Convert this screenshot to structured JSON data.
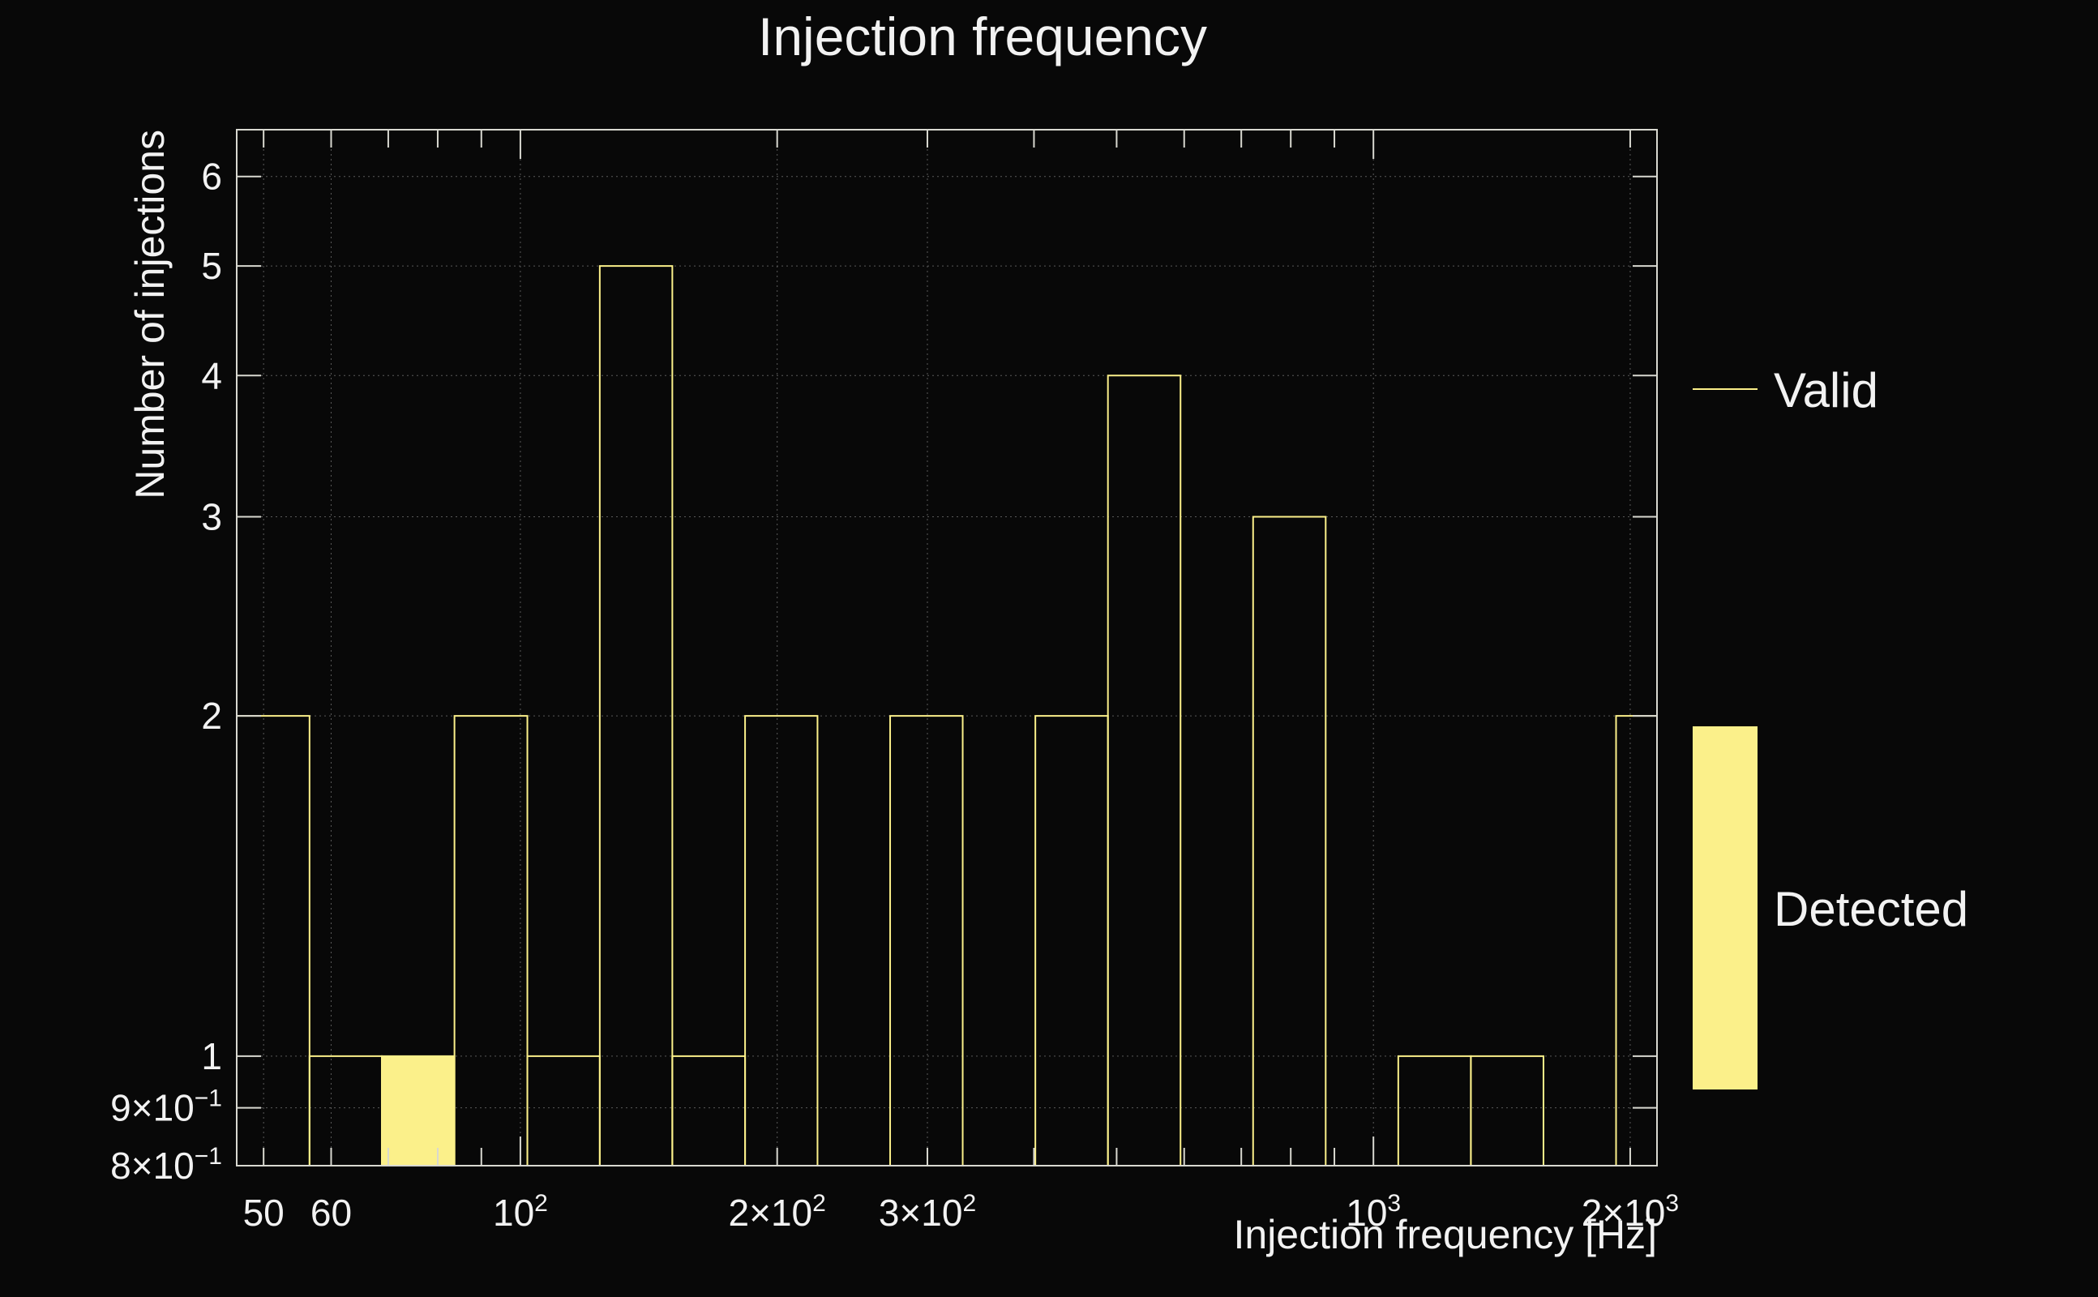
{
  "chart_data": {
    "type": "histogram",
    "title": "Injection frequency",
    "xlabel": "Injection frequency [Hz]",
    "ylabel": "Number of injections",
    "x_scale": "log",
    "y_scale": "log",
    "xlim": [
      46.5,
      2150
    ],
    "ylim": [
      0.8,
      6.6
    ],
    "grid": true,
    "legend_placement": "right",
    "colors": {
      "background": "#080808",
      "frame": "#d8d8d0",
      "series": "#fbf08a",
      "text": "#f2f2f2"
    },
    "x_ticks": [
      {
        "value": 50,
        "label": "50"
      },
      {
        "value": 60,
        "label": "60"
      },
      {
        "value": 100,
        "label": "10",
        "sup": "2"
      },
      {
        "value": 200,
        "label": "2×10",
        "sup": "2"
      },
      {
        "value": 300,
        "label": "3×10",
        "sup": "2"
      },
      {
        "value": 1000,
        "label": "10",
        "sup": "3"
      },
      {
        "value": 2000,
        "label": "2×10",
        "sup": "3"
      }
    ],
    "y_ticks": [
      {
        "value": 0.8,
        "label": "8×10",
        "sup": "−1"
      },
      {
        "value": 0.9,
        "label": "9×10",
        "sup": "−1"
      },
      {
        "value": 1,
        "label": "1"
      },
      {
        "value": 2,
        "label": "2"
      },
      {
        "value": 3,
        "label": "3"
      },
      {
        "value": 4,
        "label": "4"
      },
      {
        "value": 5,
        "label": "5"
      },
      {
        "value": 6,
        "label": "6"
      }
    ],
    "bin_edges": [
      46.5,
      56.6,
      68.8,
      83.7,
      101.9,
      123.9,
      150.7,
      183.4,
      223.0,
      271.3,
      330.0,
      401.5,
      488.4,
      594.1,
      722.7,
      879.1,
      1069.4,
      1300.9,
      1582.5,
      1925.1,
      2150
    ],
    "series": [
      {
        "name": "Valid",
        "style": "step",
        "values": [
          2,
          1,
          1,
          2,
          1,
          5,
          1,
          2,
          0,
          2,
          0,
          2,
          4,
          0,
          3,
          0,
          1,
          1,
          0,
          2
        ]
      },
      {
        "name": "Detected",
        "style": "filled",
        "values": [
          0,
          0,
          1,
          0,
          0,
          0,
          0,
          0,
          0,
          0,
          0,
          0,
          0,
          0,
          0,
          0,
          0,
          0,
          0,
          0
        ]
      }
    ]
  }
}
